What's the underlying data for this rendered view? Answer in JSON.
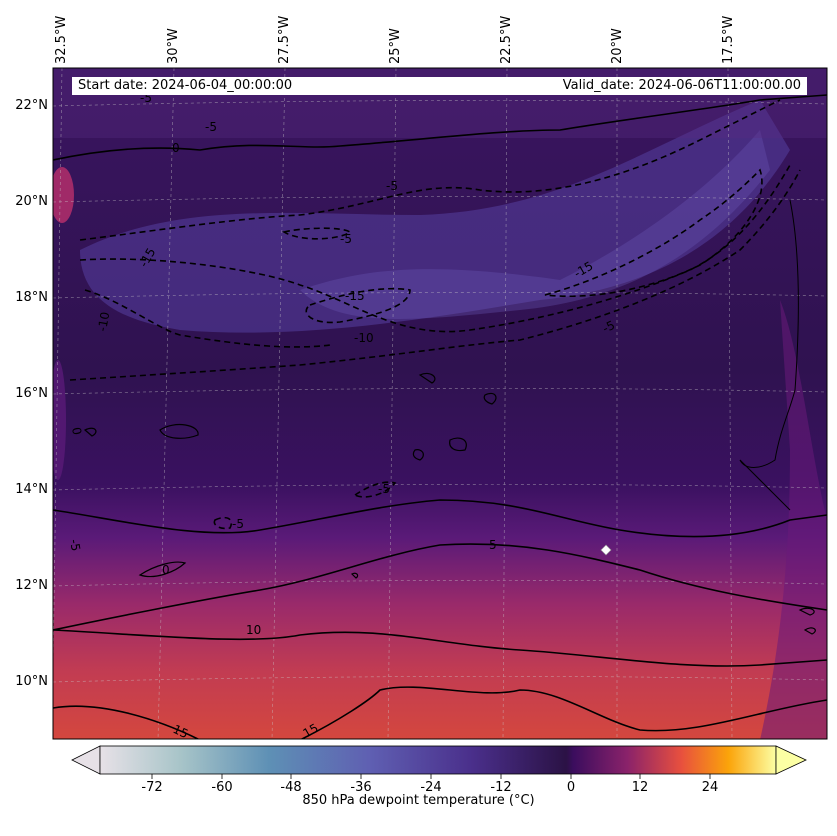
{
  "header": {
    "start_date": "Start date: 2024-06-04_00:00:00",
    "valid_date": "Valid_date: 2024-06-06T11:00:00.00"
  },
  "axes": {
    "longitude_labels": [
      "32.5°W",
      "30°W",
      "27.5°W",
      "25°W",
      "22.5°W",
      "20°W",
      "17.5°W"
    ],
    "latitude_labels": [
      "22°N",
      "20°N",
      "18°N",
      "16°N",
      "14°N",
      "12°N",
      "10°N"
    ]
  },
  "contour_labels": [
    "-5",
    "-5",
    "0",
    "-5",
    "-5",
    "-15",
    "-15",
    "-15",
    "-10",
    "-5",
    "-10",
    "-5",
    "-5",
    "0",
    "-5",
    "0",
    "5",
    "10",
    "15",
    "15"
  ],
  "marker": {
    "symbol": "white-diamond",
    "lon": -19.8,
    "lat": 12.8
  },
  "colorbar": {
    "title": "850 hPa dewpoint temperature ($^\\circ$C)",
    "tick_labels": [
      "-72",
      "-60",
      "-48",
      "-36",
      "-24",
      "-12",
      "0",
      "12",
      "24"
    ],
    "range": [
      -84,
      36
    ],
    "colormap": [
      "#e7e1e7",
      "#a7c4c8",
      "#5e90b5",
      "#5f5fb2",
      "#4a2f8b",
      "#2b1245",
      "#3b0d5e",
      "#8a226a",
      "#e8503e",
      "#fba40a",
      "#fcffa4"
    ]
  },
  "chart_data": {
    "type": "map",
    "projection": "regional lat/lon",
    "lon_range": [
      -33.0,
      -15.5
    ],
    "lat_range": [
      9.0,
      22.7
    ],
    "field": "850 hPa dewpoint temperature",
    "contour_levels": [
      -15,
      -10,
      -5,
      0,
      5,
      10,
      15
    ],
    "grid": true
  }
}
